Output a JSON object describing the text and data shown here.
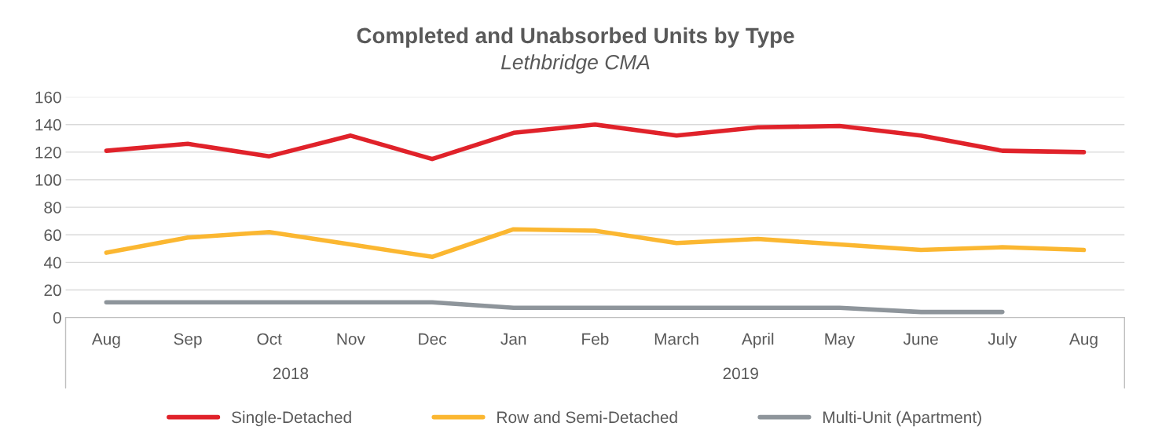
{
  "chart_data": {
    "type": "line",
    "title": "Completed and Unabsorbed Units by Type",
    "subtitle": "Lethbridge CMA",
    "categories": [
      "Aug",
      "Sep",
      "Oct",
      "Nov",
      "Dec",
      "Jan",
      "Feb",
      "March",
      "April",
      "May",
      "June",
      "July",
      "Aug"
    ],
    "series": [
      {
        "name": "Single-Detached",
        "color": "#e0222a",
        "values": [
          121,
          126,
          117,
          132,
          115,
          134,
          140,
          132,
          138,
          139,
          132,
          121,
          120
        ]
      },
      {
        "name": "Row and Semi-Detached",
        "color": "#fbb731",
        "values": [
          47,
          58,
          62,
          53,
          44,
          64,
          63,
          54,
          57,
          53,
          49,
          51,
          49
        ]
      },
      {
        "name": "Multi-Unit (Apartment)",
        "color": "#8e959b",
        "values": [
          11,
          11,
          11,
          11,
          11,
          7,
          7,
          7,
          7,
          7,
          4,
          4,
          null
        ]
      }
    ],
    "annotations": [
      "2018",
      "2019"
    ],
    "ylim": [
      0,
      160
    ],
    "yticks": [
      0,
      20,
      40,
      60,
      80,
      100,
      120,
      140,
      160
    ],
    "grid": "y",
    "legend": "bottom",
    "marker": "none",
    "line_style": "solid"
  }
}
